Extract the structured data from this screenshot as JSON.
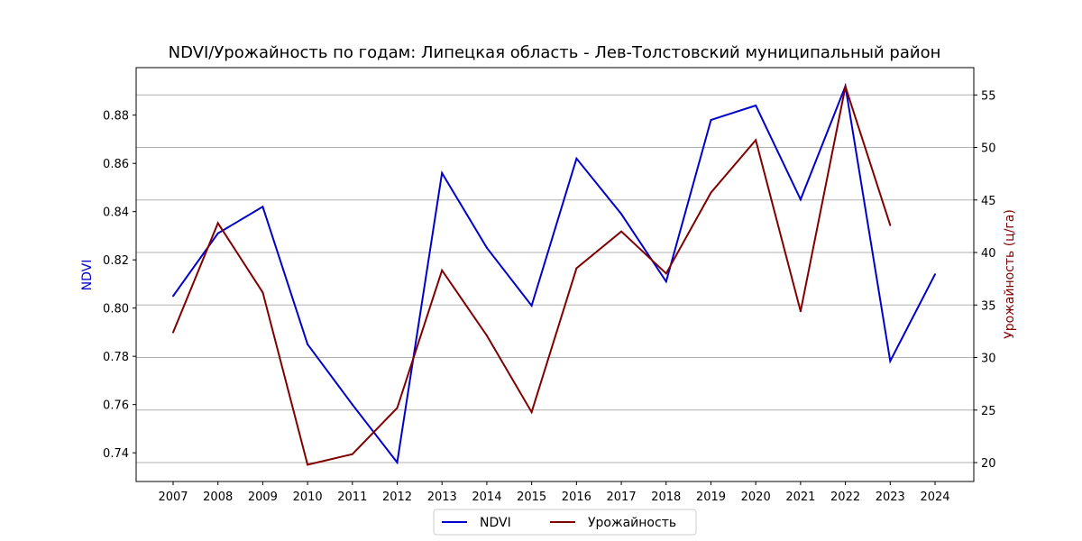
{
  "chart_data": {
    "type": "line",
    "title": "NDVI/Урожайность по годам: Липецкая область - Лев-Толстовский муниципальный район",
    "x": [
      "2007",
      "2008",
      "2009",
      "2010",
      "2011",
      "2012",
      "2013",
      "2014",
      "2015",
      "2016",
      "2017",
      "2018",
      "2019",
      "2020",
      "2021",
      "2022",
      "2023",
      "2024"
    ],
    "series": [
      {
        "name": "NDVI",
        "axis": "left",
        "color": "#0000cc",
        "values": [
          0.805,
          0.831,
          0.842,
          0.785,
          0.76,
          0.736,
          0.856,
          0.825,
          0.801,
          0.862,
          0.839,
          0.811,
          0.878,
          0.884,
          0.845,
          0.892,
          0.778,
          0.814
        ]
      },
      {
        "name": "Урожайность",
        "axis": "right",
        "color": "#800000",
        "values": [
          32.4,
          42.8,
          36.2,
          19.8,
          20.8,
          25.2,
          38.3,
          32.1,
          24.8,
          38.5,
          42.0,
          38.0,
          45.7,
          50.7,
          34.4,
          55.8,
          42.6,
          null
        ]
      }
    ],
    "ylabel_left": "NDVI",
    "ylabel_right": "Урожайность (ц/га)",
    "ylim_left": [
      0.7281,
      0.8997
    ],
    "ylim_right": [
      18.2,
      57.6
    ],
    "yticks_left": [
      "0.74",
      "0.76",
      "0.78",
      "0.80",
      "0.82",
      "0.84",
      "0.86",
      "0.88"
    ],
    "yticks_right": [
      "20",
      "25",
      "30",
      "35",
      "40",
      "45",
      "50",
      "55"
    ],
    "grid": "horizontal lines at right-axis ticks",
    "legend_placement": "bottom-center",
    "legend": [
      "NDVI",
      "Урожайность"
    ]
  }
}
